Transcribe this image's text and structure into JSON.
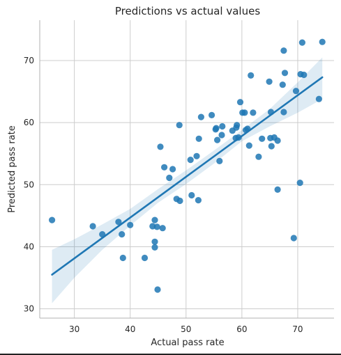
{
  "chart_data": {
    "type": "scatter",
    "title": "Predictions vs actual values",
    "xlabel": "Actual pass rate",
    "ylabel": "Predicted pass rate",
    "xlim": [
      23.8,
      76.5
    ],
    "ylim": [
      28.5,
      76.5
    ],
    "xticks": [
      30,
      40,
      50,
      60,
      70
    ],
    "yticks": [
      30,
      40,
      50,
      60,
      70
    ],
    "grid": true,
    "colors": {
      "points": "#1f77b4",
      "line": "#1f77b4",
      "band": "#1f77b4"
    },
    "points": [
      [
        26.0,
        44.3
      ],
      [
        33.3,
        43.3
      ],
      [
        35.0,
        42.0
      ],
      [
        37.9,
        44.0
      ],
      [
        38.5,
        42.0
      ],
      [
        38.7,
        38.2
      ],
      [
        40.0,
        43.5
      ],
      [
        42.6,
        38.2
      ],
      [
        44.0,
        43.3
      ],
      [
        44.4,
        44.3
      ],
      [
        44.4,
        40.8
      ],
      [
        44.4,
        39.9
      ],
      [
        44.8,
        43.2
      ],
      [
        44.9,
        33.1
      ],
      [
        45.4,
        56.1
      ],
      [
        45.8,
        43.0
      ],
      [
        46.1,
        52.8
      ],
      [
        47.0,
        51.1
      ],
      [
        47.6,
        52.5
      ],
      [
        48.3,
        47.7
      ],
      [
        48.8,
        59.6
      ],
      [
        48.9,
        47.4
      ],
      [
        50.8,
        54.0
      ],
      [
        51.0,
        48.3
      ],
      [
        51.9,
        54.6
      ],
      [
        52.2,
        47.5
      ],
      [
        52.3,
        57.4
      ],
      [
        52.7,
        60.9
      ],
      [
        54.6,
        61.2
      ],
      [
        55.3,
        58.9
      ],
      [
        55.4,
        59.1
      ],
      [
        55.6,
        57.2
      ],
      [
        56.0,
        53.8
      ],
      [
        56.4,
        58.0
      ],
      [
        56.5,
        59.4
      ],
      [
        58.3,
        58.7
      ],
      [
        58.9,
        57.5
      ],
      [
        59.0,
        59.2
      ],
      [
        59.1,
        59.6
      ],
      [
        59.4,
        57.6
      ],
      [
        59.7,
        63.3
      ],
      [
        60.1,
        61.6
      ],
      [
        60.5,
        61.6
      ],
      [
        60.7,
        58.8
      ],
      [
        61.0,
        59.0
      ],
      [
        61.3,
        56.3
      ],
      [
        61.6,
        67.6
      ],
      [
        62.0,
        61.6
      ],
      [
        63.0,
        54.5
      ],
      [
        63.6,
        57.4
      ],
      [
        64.9,
        66.6
      ],
      [
        65.1,
        57.5
      ],
      [
        65.2,
        61.7
      ],
      [
        65.3,
        56.2
      ],
      [
        65.8,
        57.6
      ],
      [
        66.4,
        57.1
      ],
      [
        66.4,
        49.2
      ],
      [
        67.3,
        66.1
      ],
      [
        67.5,
        61.7
      ],
      [
        67.5,
        71.6
      ],
      [
        67.7,
        68.0
      ],
      [
        69.3,
        41.4
      ],
      [
        69.7,
        65.1
      ],
      [
        70.4,
        50.3
      ],
      [
        70.5,
        67.8
      ],
      [
        70.8,
        72.9
      ],
      [
        71.1,
        67.7
      ],
      [
        73.8,
        63.8
      ],
      [
        74.4,
        73.0
      ]
    ],
    "regression_line": {
      "x": [
        26.0,
        74.4
      ],
      "y": [
        35.5,
        67.3
      ]
    },
    "confidence_band": {
      "x": [
        26.0,
        30.0,
        35.0,
        40.0,
        45.0,
        50.0,
        55.0,
        60.0,
        65.0,
        70.0,
        74.4
      ],
      "lower": [
        30.9,
        35.0,
        39.5,
        43.4,
        47.1,
        50.1,
        53.4,
        57.0,
        59.4,
        61.6,
        63.8
      ],
      "upper": [
        39.5,
        41.2,
        43.6,
        46.1,
        49.3,
        52.3,
        55.5,
        58.8,
        62.2,
        66.5,
        70.5
      ]
    }
  }
}
